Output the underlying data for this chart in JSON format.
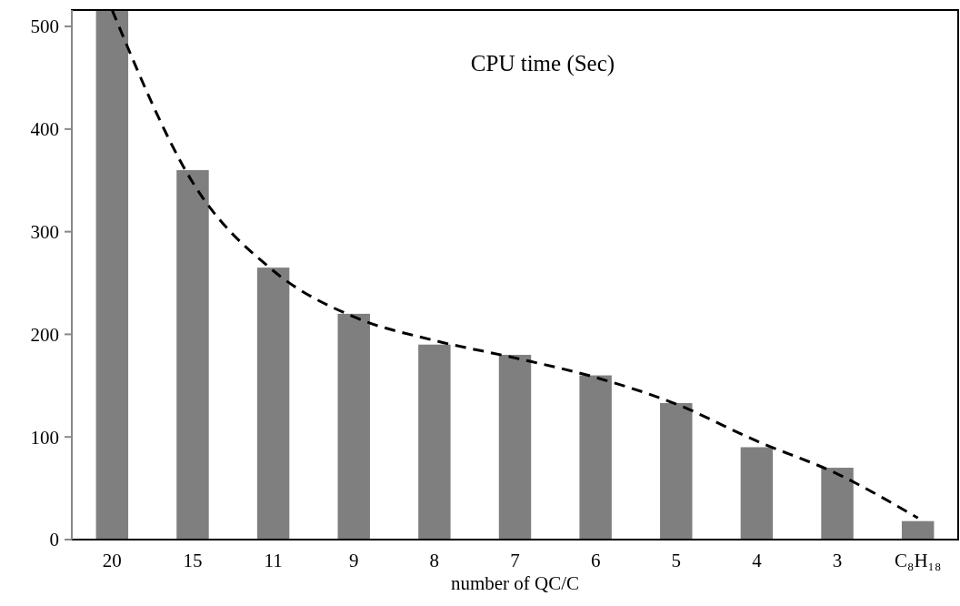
{
  "chart_data": {
    "type": "bar",
    "title": "CPU time (Sec)",
    "xlabel": "number of QC/C",
    "categories": [
      "20",
      "15",
      "11",
      "9",
      "8",
      "7",
      "6",
      "5",
      "4",
      "3",
      "C₈H₁₈"
    ],
    "series": [
      {
        "color": "#7f7f7f",
        "values": [
          516,
          360,
          265,
          220,
          190,
          180,
          160,
          133,
          90,
          70,
          18
        ]
      },
      {
        "type": "line",
        "color": "#000000",
        "line_style": "dashed",
        "marker": "none",
        "values": [
          516,
          348,
          262,
          217,
          194,
          177,
          158,
          132,
          96,
          64,
          21
        ]
      }
    ],
    "ylim": [
      0,
      516
    ],
    "yticks": [
      0,
      100,
      200,
      300,
      400,
      500
    ],
    "grid": false
  }
}
